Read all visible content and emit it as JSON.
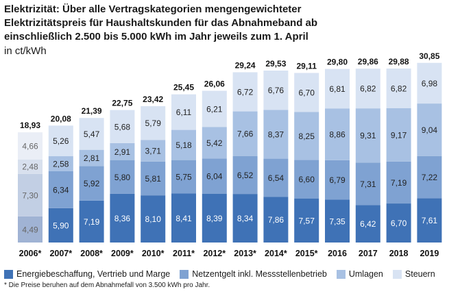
{
  "title_lines": [
    "Elektrizität: Über alle Vertragskategorien mengengewichteter",
    "Elektrizitätspreis für Haushaltskunden für das Abnahmeband ab",
    "einschließlich 2.500 bis 5.000 kWh im Jahr jeweils zum 1. April"
  ],
  "unit": "in ct/kWh",
  "footnote": "* Die Preise beruhen auf dem Abnahmefall von 3.500 kWh pro Jahr.",
  "colors": {
    "energie": "#3f72b6",
    "netz": "#7fa2d2",
    "umlagen": "#a8c1e3",
    "steuern": "#d8e3f3",
    "energie_2006": "#a0b3d4",
    "netz_2006": "#c2cfe4",
    "umlagen_2006": "#d8e0ee",
    "steuern_2006": "#eaeef6"
  },
  "chart_data": {
    "type": "bar",
    "stacked": true,
    "title": "Elektrizität: Über alle Vertragskategorien mengengewichteter Elektrizitätspreis für Haushaltskunden für das Abnahmeband ab einschließlich 2.500 bis 5.000 kWh im Jahr jeweils zum 1. April",
    "ylabel": "in ct/kWh",
    "categories": [
      "2006*",
      "2007*",
      "2008*",
      "2009*",
      "2010*",
      "2011*",
      "2012*",
      "2013*",
      "2014*",
      "2015*",
      "2016",
      "2017",
      "2018",
      "2019"
    ],
    "totals": [
      "18,93",
      "20,08",
      "21,39",
      "22,75",
      "23,42",
      "25,45",
      "26,06",
      "29,24",
      "29,53",
      "29,11",
      "29,80",
      "29,86",
      "29,88",
      "30,85"
    ],
    "series": [
      {
        "name": "Energiebeschaffung, Vertrieb und Marge",
        "key": "energie",
        "values": [
          4.49,
          5.9,
          7.19,
          8.36,
          8.1,
          8.41,
          8.39,
          8.34,
          7.86,
          7.57,
          7.35,
          6.42,
          6.7,
          7.61
        ],
        "labels": [
          "4,49",
          "5,90",
          "7,19",
          "8,36",
          "8,10",
          "8,41",
          "8,39",
          "8,34",
          "7,86",
          "7,57",
          "7,35",
          "6,42",
          "6,70",
          "7,61"
        ]
      },
      {
        "name": "Netzentgelt inkl. Messstellenbetrieb",
        "key": "netz",
        "values": [
          7.3,
          6.34,
          5.92,
          5.8,
          5.81,
          5.75,
          6.04,
          6.52,
          6.54,
          6.6,
          6.79,
          7.31,
          7.19,
          7.22
        ],
        "labels": [
          "7,30",
          "6,34",
          "5,92",
          "5,80",
          "5,81",
          "5,75",
          "6,04",
          "6,52",
          "6,54",
          "6,60",
          "6,79",
          "7,31",
          "7,19",
          "7,22"
        ]
      },
      {
        "name": "Umlagen",
        "key": "umlagen",
        "values": [
          2.48,
          2.58,
          2.81,
          2.91,
          3.71,
          5.18,
          5.42,
          7.66,
          8.37,
          8.25,
          8.86,
          9.31,
          9.17,
          9.04
        ],
        "labels": [
          "2,48",
          "2,58",
          "2,81",
          "2,91",
          "3,71",
          "5,18",
          "5,42",
          "7,66",
          "8,37",
          "8,25",
          "8,86",
          "9,31",
          "9,17",
          "9,04"
        ]
      },
      {
        "name": "Steuern",
        "key": "steuern",
        "values": [
          4.66,
          5.26,
          5.47,
          5.68,
          5.79,
          6.11,
          6.21,
          6.72,
          6.76,
          6.7,
          6.81,
          6.82,
          6.82,
          6.98
        ],
        "labels": [
          "4,66",
          "5,26",
          "5,47",
          "5,68",
          "5,79",
          "6,11",
          "6,21",
          "6,72",
          "6,76",
          "6,70",
          "6,81",
          "6,82",
          "6,82",
          "6,98"
        ]
      }
    ],
    "ylim": [
      0,
      31.5
    ],
    "legend": "bottom"
  }
}
